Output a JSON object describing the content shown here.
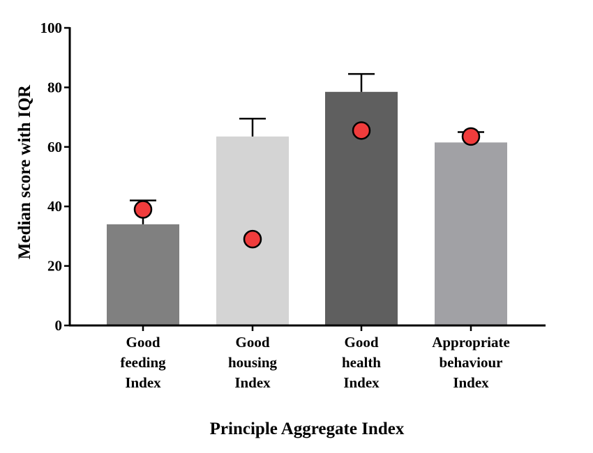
{
  "chart_data": {
    "type": "bar",
    "title": "",
    "xlabel": "Principle Aggregate Index",
    "ylabel": "Median score with IQR",
    "ylim": [
      0,
      100
    ],
    "yticks": [
      0,
      20,
      40,
      60,
      80,
      100
    ],
    "categories": [
      [
        "Good",
        "feeding",
        "Index"
      ],
      [
        "Good",
        "housing",
        "Index"
      ],
      [
        "Good",
        "health",
        "Index"
      ],
      [
        "Appropriate",
        "behaviour",
        "Index"
      ]
    ],
    "values": [
      34,
      63.5,
      78.5,
      61.5
    ],
    "error_upper": [
      42,
      69.5,
      84.5,
      65
    ],
    "markers": [
      39,
      29,
      65.5,
      63.5
    ],
    "bar_colors": [
      "#808080",
      "#d4d4d4",
      "#5f5f5f",
      "#a1a1a5"
    ],
    "marker_color": "#f03c3c",
    "grid": false,
    "legend": "none"
  }
}
